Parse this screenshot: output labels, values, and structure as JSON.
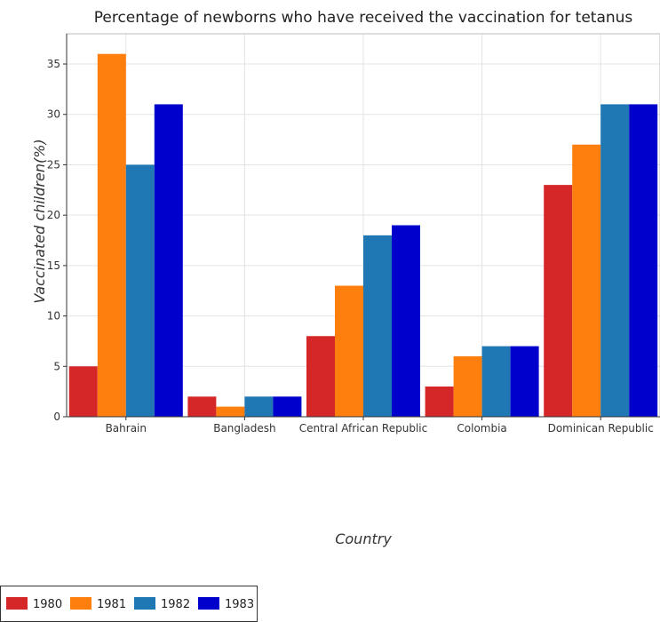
{
  "chart_data": {
    "type": "bar",
    "title": "Percentage of newborns who have received the vaccination for tetanus",
    "xlabel": "Country",
    "ylabel": "Vaccinated children(%)",
    "categories": [
      "Bahrain",
      "Bangladesh",
      "Central African Republic",
      "Colombia",
      "Dominican Republic"
    ],
    "series": [
      {
        "name": "1980",
        "color": "#d62728",
        "values": [
          5,
          2,
          8,
          3,
          23
        ]
      },
      {
        "name": "1981",
        "color": "#ff7f0e",
        "values": [
          36,
          1,
          13,
          6,
          27
        ]
      },
      {
        "name": "1982",
        "color": "#1f77b4",
        "values": [
          25,
          2,
          18,
          7,
          31
        ]
      },
      {
        "name": "1983",
        "color": "#0000cc",
        "values": [
          31,
          2,
          19,
          7,
          31
        ]
      }
    ],
    "ylim": [
      0,
      38
    ],
    "yticks": [
      0,
      5,
      10,
      15,
      20,
      25,
      30,
      35
    ],
    "grid": true,
    "legend_position": "bottom-left"
  }
}
